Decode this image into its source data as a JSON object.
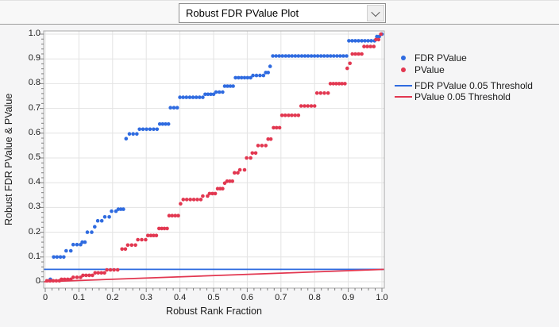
{
  "toolbar": {
    "dropdown_value": "Robust FDR PValue Plot"
  },
  "chart_data": {
    "type": "scatter",
    "title": "Robust FDR PValue Plot",
    "xlabel": "Robust Rank Fraction",
    "ylabel": "Robust FDR PValue & PValue",
    "xlim": [
      0,
      1.0
    ],
    "ylim": [
      0,
      1.0
    ],
    "grid": true,
    "xticks": {
      "values": [
        0,
        0.1,
        0.2,
        0.3,
        0.4,
        0.5,
        0.6,
        0.7,
        0.8,
        0.9,
        1.0
      ],
      "labels": [
        "0",
        "0.1",
        "0.2",
        "0.3",
        "0.4",
        "0.5",
        "0.6",
        "0.7",
        "0.8",
        "0.9",
        "1.0"
      ]
    },
    "yticks": {
      "values": [
        0,
        0.1,
        0.2,
        0.3,
        0.4,
        0.5,
        0.6,
        0.7,
        0.8,
        0.9,
        1.0
      ],
      "labels": [
        "0",
        "0.1",
        "0.2",
        "0.3",
        "0.4",
        "0.5",
        "0.6",
        "0.7",
        "0.8",
        "0.9",
        "1.0"
      ]
    },
    "minor_tick_step": 0.02,
    "point_x_spacing": 0.0095,
    "series": [
      {
        "name": "FDR PValue",
        "type": "points",
        "color": "#2f6be0",
        "runs_x0_x1_y": [
          [
            0.015,
            0.015,
            0.01
          ],
          [
            0.025,
            0.055,
            0.1
          ],
          [
            0.062,
            0.076,
            0.125
          ],
          [
            0.083,
            0.105,
            0.15
          ],
          [
            0.11,
            0.118,
            0.16
          ],
          [
            0.125,
            0.138,
            0.2
          ],
          [
            0.147,
            0.147,
            0.222
          ],
          [
            0.156,
            0.168,
            0.246
          ],
          [
            0.177,
            0.19,
            0.262
          ],
          [
            0.197,
            0.21,
            0.285
          ],
          [
            0.217,
            0.232,
            0.293
          ],
          [
            0.24,
            0.24,
            0.578
          ],
          [
            0.25,
            0.272,
            0.597
          ],
          [
            0.28,
            0.332,
            0.616
          ],
          [
            0.34,
            0.366,
            0.637
          ],
          [
            0.372,
            0.392,
            0.703
          ],
          [
            0.4,
            0.468,
            0.745
          ],
          [
            0.475,
            0.5,
            0.757
          ],
          [
            0.507,
            0.527,
            0.766
          ],
          [
            0.533,
            0.558,
            0.79
          ],
          [
            0.565,
            0.61,
            0.824
          ],
          [
            0.617,
            0.648,
            0.833
          ],
          [
            0.655,
            0.662,
            0.845
          ],
          [
            0.668,
            0.668,
            0.87
          ],
          [
            0.676,
            0.895,
            0.912
          ],
          [
            0.902,
            0.978,
            0.973
          ],
          [
            0.985,
            0.992,
            0.99
          ],
          [
            1.0,
            1.0,
            1.0
          ]
        ]
      },
      {
        "name": "PValue",
        "type": "points",
        "color": "#e23750",
        "runs_x0_x1_y": [
          [
            0.005,
            0.042,
            0.004
          ],
          [
            0.048,
            0.076,
            0.01
          ],
          [
            0.083,
            0.105,
            0.018
          ],
          [
            0.112,
            0.14,
            0.026
          ],
          [
            0.148,
            0.176,
            0.036
          ],
          [
            0.183,
            0.215,
            0.048
          ],
          [
            0.228,
            0.238,
            0.132
          ],
          [
            0.245,
            0.268,
            0.148
          ],
          [
            0.275,
            0.298,
            0.17
          ],
          [
            0.305,
            0.33,
            0.187
          ],
          [
            0.338,
            0.362,
            0.215
          ],
          [
            0.368,
            0.395,
            0.267
          ],
          [
            0.402,
            0.402,
            0.315
          ],
          [
            0.41,
            0.462,
            0.332
          ],
          [
            0.468,
            0.482,
            0.346
          ],
          [
            0.488,
            0.505,
            0.356
          ],
          [
            0.512,
            0.527,
            0.376
          ],
          [
            0.533,
            0.533,
            0.398
          ],
          [
            0.54,
            0.556,
            0.406
          ],
          [
            0.562,
            0.572,
            0.44
          ],
          [
            0.578,
            0.592,
            0.452
          ],
          [
            0.598,
            0.61,
            0.5
          ],
          [
            0.615,
            0.625,
            0.52
          ],
          [
            0.632,
            0.655,
            0.55
          ],
          [
            0.662,
            0.67,
            0.576
          ],
          [
            0.678,
            0.696,
            0.622
          ],
          [
            0.703,
            0.752,
            0.672
          ],
          [
            0.76,
            0.8,
            0.71
          ],
          [
            0.807,
            0.84,
            0.762
          ],
          [
            0.847,
            0.89,
            0.8
          ],
          [
            0.897,
            0.897,
            0.862
          ],
          [
            0.905,
            0.905,
            0.882
          ],
          [
            0.912,
            0.94,
            0.92
          ],
          [
            0.947,
            0.976,
            0.95
          ],
          [
            0.982,
            0.99,
            0.978
          ],
          [
            0.997,
            1.0,
            1.0
          ]
        ]
      },
      {
        "name": "FDR PValue 0.05 Threshold",
        "type": "line",
        "color": "#2f6be0",
        "points": [
          [
            0,
            0.05
          ],
          [
            1.0,
            0.05
          ]
        ]
      },
      {
        "name": "PValue 0.05 Threshold",
        "type": "line",
        "color": "#e23750",
        "points": [
          [
            0,
            0
          ],
          [
            1.0,
            0.05
          ]
        ]
      }
    ],
    "legend": {
      "position": "right",
      "entries": [
        {
          "label": "FDR PValue",
          "marker": "dot",
          "color": "#2f6be0"
        },
        {
          "label": "PValue",
          "marker": "dot",
          "color": "#e23750"
        },
        {
          "label": "FDR PValue 0.05 Threshold",
          "marker": "line",
          "color": "#2f6be0"
        },
        {
          "label": "PValue 0.05 Threshold",
          "marker": "line",
          "color": "#e23750"
        }
      ]
    }
  },
  "colors": {
    "accent_blue": "#2f6be0",
    "accent_red": "#e23750",
    "plot_bg": "#ffffff",
    "panel_bg": "#f5f5f6",
    "toolbar_bg": "#f8f8f8",
    "gridline": "#e3e3e3",
    "frame": "#a8a8a8",
    "tick": "#7d7d7d",
    "text": "#1a1a1a"
  }
}
